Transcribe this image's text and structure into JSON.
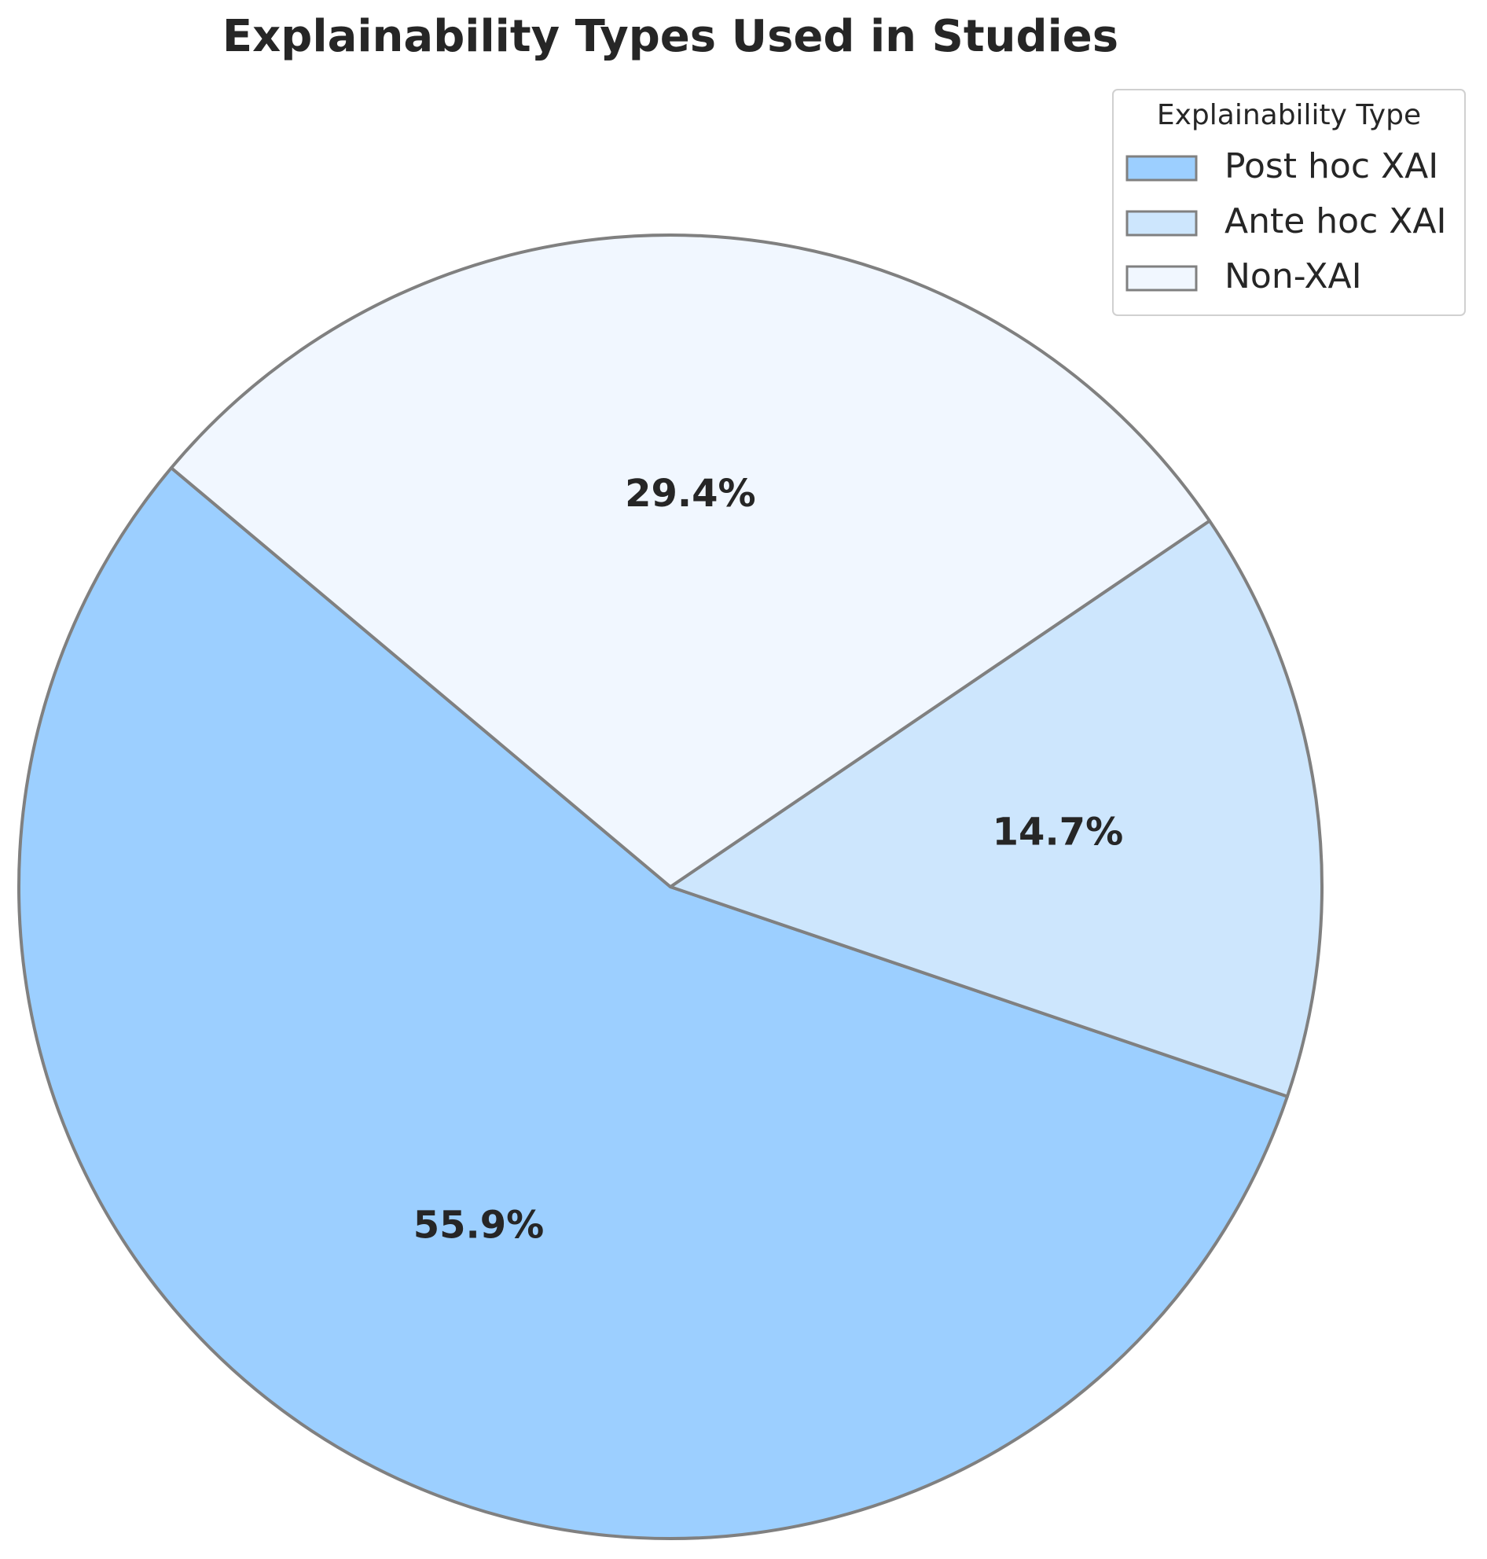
{
  "chart_data": {
    "type": "pie",
    "title": "Explainability Types Used in Studies",
    "categories": [
      "Post hoc XAI",
      "Ante hoc XAI",
      "Non-XAI"
    ],
    "values": [
      55.9,
      14.7,
      29.4
    ],
    "value_labels": [
      "55.9%",
      "14.7%",
      "29.4%"
    ],
    "colors": [
      "#9ccfff",
      "#cde6fd",
      "#f1f7ff"
    ],
    "start_angle": 140,
    "legend_title": "Explainability Type",
    "legend_position": "upper right"
  }
}
